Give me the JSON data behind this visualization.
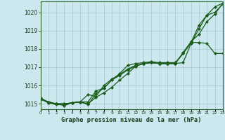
{
  "title": "Graphe pression niveau de la mer (hPa)",
  "background_color": "#cce8ee",
  "plot_bg_color": "#cce8ee",
  "grid_color": "#aaccd4",
  "line_color": "#1a5c1a",
  "marker_color": "#1a5c1a",
  "xlim": [
    0,
    23
  ],
  "ylim": [
    1014.7,
    1020.6
  ],
  "yticks": [
    1015,
    1016,
    1017,
    1018,
    1019,
    1020
  ],
  "xticks": [
    0,
    1,
    2,
    3,
    4,
    5,
    6,
    7,
    8,
    9,
    10,
    11,
    12,
    13,
    14,
    15,
    16,
    17,
    18,
    19,
    20,
    21,
    22,
    23
  ],
  "series": [
    [
      1015.3,
      1015.1,
      1015.0,
      1014.9,
      1015.05,
      1015.1,
      1015.0,
      1015.35,
      1015.6,
      1015.9,
      1016.3,
      1016.65,
      1017.05,
      1017.2,
      1017.25,
      1017.2,
      1017.2,
      1017.2,
      1017.25,
      1018.3,
      1019.1,
      1019.85,
      1020.0,
      1020.45
    ],
    [
      1015.3,
      1015.05,
      1014.95,
      1014.95,
      1015.05,
      1015.1,
      1014.95,
      1015.55,
      1015.85,
      1016.3,
      1016.65,
      1017.1,
      1017.2,
      1017.25,
      1017.3,
      1017.25,
      1017.25,
      1017.25,
      1017.75,
      1018.35,
      1019.3,
      1019.85,
      1020.3,
      1020.5
    ],
    [
      1015.25,
      1015.1,
      1015.0,
      1015.0,
      1015.05,
      1015.1,
      1015.5,
      1015.4,
      1016.0,
      1016.35,
      1016.6,
      1016.9,
      1017.1,
      1017.2,
      1017.25,
      1017.2,
      1017.2,
      1017.2,
      1017.8,
      1018.4,
      1018.8,
      1019.5,
      1019.9,
      1020.5
    ],
    [
      1015.25,
      1015.05,
      1015.0,
      1015.0,
      1015.05,
      1015.1,
      1015.1,
      1015.7,
      1015.85,
      1016.3,
      1016.55,
      1016.85,
      1017.05,
      1017.2,
      1017.25,
      1017.2,
      1017.2,
      1017.2,
      1017.75,
      1018.35,
      1018.35,
      1018.3,
      1017.75,
      1017.75
    ]
  ]
}
